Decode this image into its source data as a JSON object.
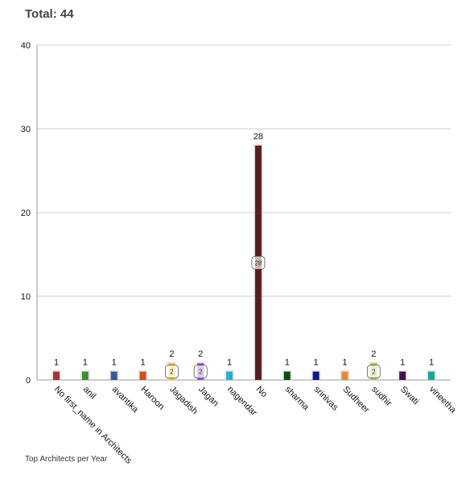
{
  "header": {
    "total_label": "Total: 44"
  },
  "footer": {
    "caption": "Top Architects per Year"
  },
  "chart_data": {
    "type": "bar",
    "title": "",
    "xlabel": "",
    "ylabel": "",
    "ylim": [
      0,
      40
    ],
    "yticks": [
      0,
      10,
      20,
      30,
      40
    ],
    "grid": true,
    "categories": [
      "No first_name in Architects",
      "anil",
      "avantika",
      "Haroon",
      "Jagadish",
      "Jagan",
      "nagendar",
      "No",
      "sharma",
      "srinivas",
      "Sudheer",
      "sudhir",
      "Swati",
      "vineetha"
    ],
    "values": [
      1,
      1,
      1,
      1,
      2,
      2,
      1,
      28,
      1,
      1,
      1,
      2,
      1,
      1
    ],
    "colors": [
      "#a83238",
      "#3e8a38",
      "#2f5a9a",
      "#cc5218",
      "#e8c82a",
      "#8a4fd0",
      "#2ab0c8",
      "#5a1e1e",
      "#0f4a12",
      "#0c1a8a",
      "#e88a38",
      "#a8c84a",
      "#4a0a5a",
      "#18a898"
    ]
  }
}
